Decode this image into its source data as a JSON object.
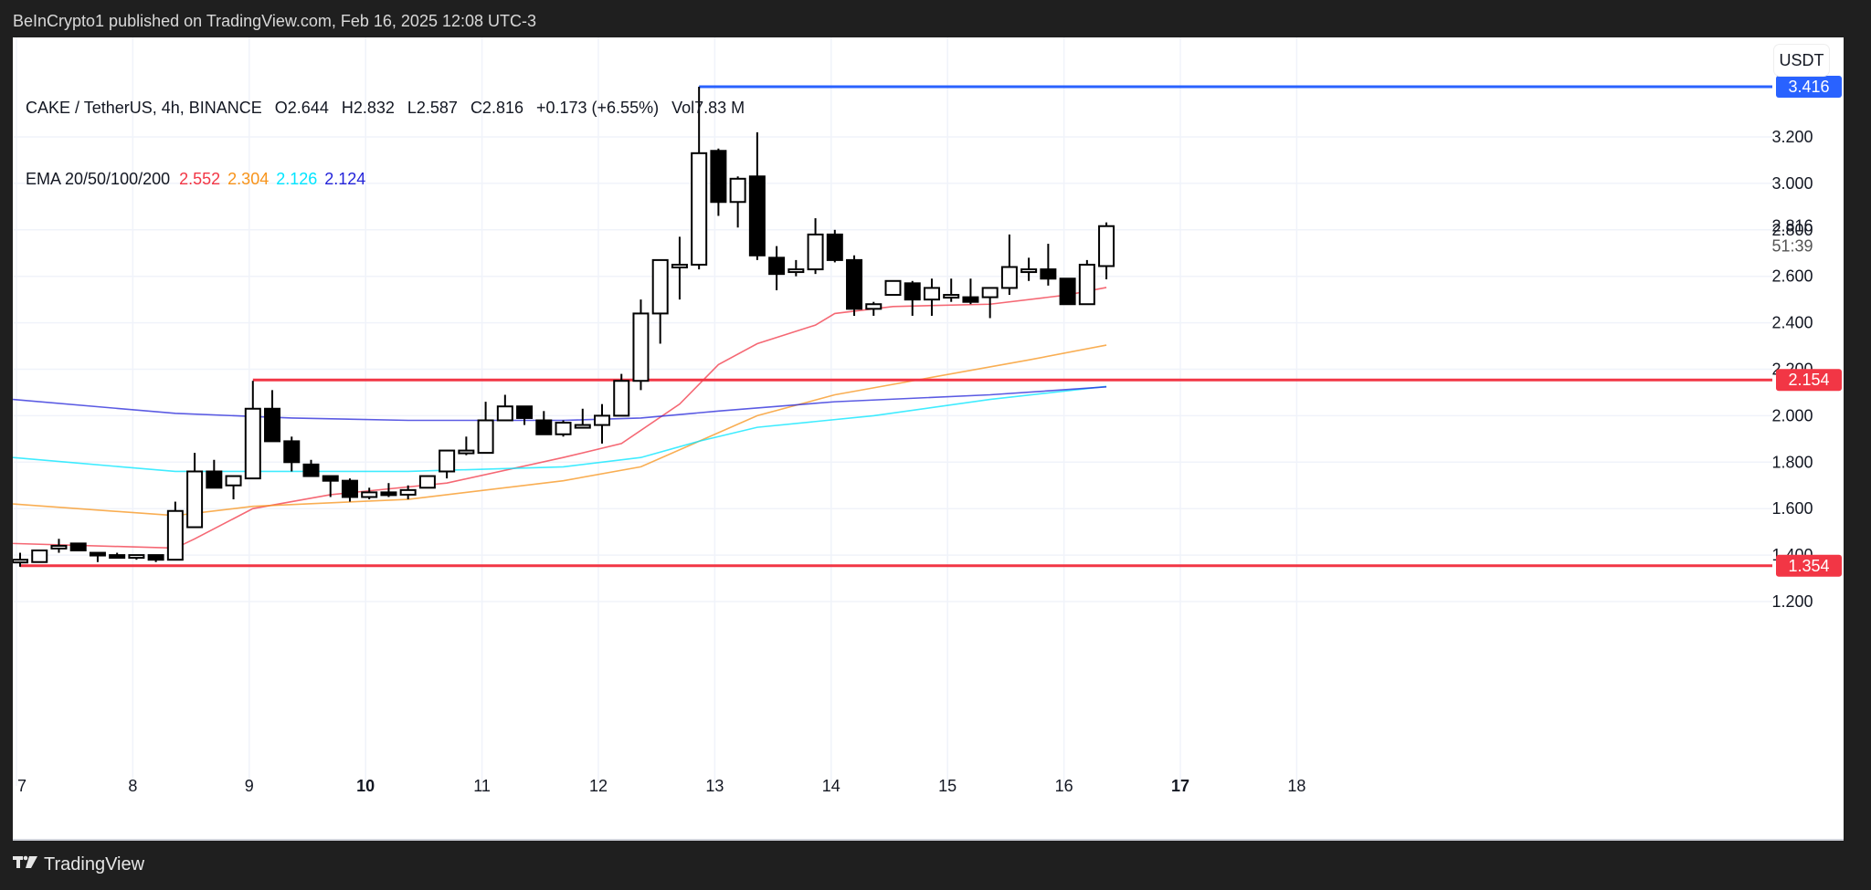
{
  "topbar": {
    "title": "BeInCrypto1 published on TradingView.com, Feb 16, 2025 12:08 UTC-3"
  },
  "legend": {
    "symbol": "CAKE / TetherUS, 4h, BINANCE",
    "open": "O2.644",
    "high": "H2.832",
    "low": "L2.587",
    "close": "C2.816",
    "change": "+0.173 (+6.55%)",
    "volume": "Vol7.83 M",
    "ema_label": "EMA 20/50/100/200",
    "ema20": "2.552",
    "ema50": "2.304",
    "ema100": "2.126",
    "ema200": "2.124"
  },
  "price_axis": {
    "unit_button": "USDT",
    "countdown": "51:39"
  },
  "footer": {
    "brand": "TradingView"
  },
  "colors": {
    "ema20": "#f23645",
    "ema50": "#f7931a",
    "ema100": "#00e5ff",
    "ema200": "#2424d9",
    "resistance": "#2962ff",
    "support": "#f23645"
  },
  "chart_data": {
    "type": "candlestick",
    "title": "CAKE / TetherUS, 4h, BINANCE",
    "xlabel": "",
    "ylabel": "USDT",
    "ylim": [
      1.1,
      3.55
    ],
    "x_ticks": [
      "7",
      "8",
      "9",
      "10",
      "11",
      "12",
      "13",
      "14",
      "15",
      "16",
      "17",
      "18"
    ],
    "y_ticks": [
      "1.200",
      "1.400",
      "1.600",
      "1.800",
      "2.000",
      "2.200",
      "2.400",
      "2.600",
      "2.800",
      "3.000",
      "3.200"
    ],
    "horizontal_levels": [
      {
        "label": "3.416",
        "value": 3.416,
        "color": "#2962ff"
      },
      {
        "label": "2.154",
        "value": 2.154,
        "color": "#f23645"
      },
      {
        "label": "1.354",
        "value": 1.354,
        "color": "#f23645"
      }
    ],
    "last_price": {
      "label": "2.816",
      "value": 2.816
    },
    "candles": [
      {
        "o": 1.38,
        "h": 1.41,
        "l": 1.35,
        "c": 1.38
      },
      {
        "o": 1.37,
        "h": 1.42,
        "l": 1.37,
        "c": 1.42
      },
      {
        "o": 1.43,
        "h": 1.47,
        "l": 1.41,
        "c": 1.44
      },
      {
        "o": 1.45,
        "h": 1.45,
        "l": 1.42,
        "c": 1.42
      },
      {
        "o": 1.41,
        "h": 1.41,
        "l": 1.37,
        "c": 1.4
      },
      {
        "o": 1.4,
        "h": 1.41,
        "l": 1.39,
        "c": 1.39
      },
      {
        "o": 1.39,
        "h": 1.4,
        "l": 1.38,
        "c": 1.4
      },
      {
        "o": 1.4,
        "h": 1.4,
        "l": 1.37,
        "c": 1.38
      },
      {
        "o": 1.38,
        "h": 1.63,
        "l": 1.38,
        "c": 1.59
      },
      {
        "o": 1.52,
        "h": 1.84,
        "l": 1.52,
        "c": 1.76
      },
      {
        "o": 1.76,
        "h": 1.81,
        "l": 1.69,
        "c": 1.69
      },
      {
        "o": 1.7,
        "h": 1.7,
        "l": 1.64,
        "c": 1.74
      },
      {
        "o": 1.73,
        "h": 2.15,
        "l": 1.73,
        "c": 2.03
      },
      {
        "o": 2.03,
        "h": 2.11,
        "l": 1.89,
        "c": 1.89
      },
      {
        "o": 1.89,
        "h": 1.91,
        "l": 1.76,
        "c": 1.8
      },
      {
        "o": 1.79,
        "h": 1.81,
        "l": 1.74,
        "c": 1.74
      },
      {
        "o": 1.74,
        "h": 1.74,
        "l": 1.65,
        "c": 1.72
      },
      {
        "o": 1.72,
        "h": 1.73,
        "l": 1.63,
        "c": 1.65
      },
      {
        "o": 1.65,
        "h": 1.69,
        "l": 1.64,
        "c": 1.67
      },
      {
        "o": 1.67,
        "h": 1.71,
        "l": 1.65,
        "c": 1.66
      },
      {
        "o": 1.66,
        "h": 1.7,
        "l": 1.64,
        "c": 1.68
      },
      {
        "o": 1.69,
        "h": 1.74,
        "l": 1.69,
        "c": 1.74
      },
      {
        "o": 1.76,
        "h": 1.83,
        "l": 1.73,
        "c": 1.85
      },
      {
        "o": 1.84,
        "h": 1.91,
        "l": 1.83,
        "c": 1.85
      },
      {
        "o": 1.84,
        "h": 2.06,
        "l": 1.84,
        "c": 1.98
      },
      {
        "o": 1.98,
        "h": 2.09,
        "l": 1.99,
        "c": 2.04
      },
      {
        "o": 2.04,
        "h": 2.01,
        "l": 1.96,
        "c": 1.99
      },
      {
        "o": 1.98,
        "h": 2.02,
        "l": 1.92,
        "c": 1.92
      },
      {
        "o": 1.92,
        "h": 1.98,
        "l": 1.91,
        "c": 1.97
      },
      {
        "o": 1.96,
        "h": 2.03,
        "l": 1.95,
        "c": 1.96
      },
      {
        "o": 1.96,
        "h": 2.05,
        "l": 1.88,
        "c": 2.0
      },
      {
        "o": 2.0,
        "h": 2.18,
        "l": 2.0,
        "c": 2.15
      },
      {
        "o": 2.15,
        "h": 2.5,
        "l": 2.11,
        "c": 2.44
      },
      {
        "o": 2.44,
        "h": 2.67,
        "l": 2.31,
        "c": 2.67
      },
      {
        "o": 2.65,
        "h": 2.77,
        "l": 2.5,
        "c": 2.65
      },
      {
        "o": 2.65,
        "h": 3.416,
        "l": 2.63,
        "c": 3.13
      },
      {
        "o": 3.14,
        "h": 3.15,
        "l": 2.86,
        "c": 2.92
      },
      {
        "o": 2.92,
        "h": 3.03,
        "l": 2.81,
        "c": 3.02
      },
      {
        "o": 3.03,
        "h": 3.22,
        "l": 2.67,
        "c": 2.69
      },
      {
        "o": 2.68,
        "h": 2.73,
        "l": 2.54,
        "c": 2.61
      },
      {
        "o": 2.62,
        "h": 2.67,
        "l": 2.6,
        "c": 2.63
      },
      {
        "o": 2.63,
        "h": 2.85,
        "l": 2.61,
        "c": 2.78
      },
      {
        "o": 2.78,
        "h": 2.8,
        "l": 2.66,
        "c": 2.67
      },
      {
        "o": 2.67,
        "h": 2.69,
        "l": 2.43,
        "c": 2.46
      },
      {
        "o": 2.46,
        "h": 2.49,
        "l": 2.43,
        "c": 2.48
      },
      {
        "o": 2.52,
        "h": 2.58,
        "l": 2.52,
        "c": 2.58
      },
      {
        "o": 2.57,
        "h": 2.58,
        "l": 2.43,
        "c": 2.5
      },
      {
        "o": 2.5,
        "h": 2.59,
        "l": 2.43,
        "c": 2.55
      },
      {
        "o": 2.52,
        "h": 2.59,
        "l": 2.49,
        "c": 2.52
      },
      {
        "o": 2.51,
        "h": 2.59,
        "l": 2.48,
        "c": 2.49
      },
      {
        "o": 2.51,
        "h": 2.55,
        "l": 2.42,
        "c": 2.55
      },
      {
        "o": 2.55,
        "h": 2.78,
        "l": 2.52,
        "c": 2.64
      },
      {
        "o": 2.63,
        "h": 2.68,
        "l": 2.58,
        "c": 2.63
      },
      {
        "o": 2.63,
        "h": 2.74,
        "l": 2.56,
        "c": 2.59
      },
      {
        "o": 2.59,
        "h": 2.59,
        "l": 2.48,
        "c": 2.48
      },
      {
        "o": 2.48,
        "h": 2.67,
        "l": 2.48,
        "c": 2.65
      },
      {
        "o": 2.644,
        "h": 2.832,
        "l": 2.587,
        "c": 2.816
      }
    ],
    "series": [
      {
        "name": "EMA 20",
        "color": "#f23645",
        "last": 2.552,
        "values": [
          [
            0,
            1.45
          ],
          [
            8,
            1.43
          ],
          [
            9,
            1.47
          ],
          [
            12,
            1.6
          ],
          [
            16,
            1.66
          ],
          [
            22,
            1.71
          ],
          [
            28,
            1.82
          ],
          [
            31,
            1.88
          ],
          [
            34,
            2.05
          ],
          [
            36,
            2.22
          ],
          [
            38,
            2.31
          ],
          [
            41,
            2.39
          ],
          [
            42,
            2.44
          ],
          [
            45,
            2.47
          ],
          [
            50,
            2.48
          ],
          [
            54,
            2.52
          ],
          [
            56,
            2.552
          ]
        ]
      },
      {
        "name": "EMA 50",
        "color": "#f7931a",
        "last": 2.304,
        "values": [
          [
            0,
            1.62
          ],
          [
            8,
            1.57
          ],
          [
            12,
            1.61
          ],
          [
            20,
            1.64
          ],
          [
            28,
            1.72
          ],
          [
            32,
            1.78
          ],
          [
            35,
            1.89
          ],
          [
            38,
            2.0
          ],
          [
            42,
            2.09
          ],
          [
            46,
            2.15
          ],
          [
            52,
            2.24
          ],
          [
            56,
            2.304
          ]
        ]
      },
      {
        "name": "EMA 100",
        "color": "#00e5ff",
        "last": 2.126,
        "values": [
          [
            0,
            1.82
          ],
          [
            8,
            1.76
          ],
          [
            12,
            1.76
          ],
          [
            20,
            1.76
          ],
          [
            28,
            1.78
          ],
          [
            32,
            1.82
          ],
          [
            35,
            1.89
          ],
          [
            38,
            1.95
          ],
          [
            44,
            2.0
          ],
          [
            50,
            2.07
          ],
          [
            56,
            2.126
          ]
        ]
      },
      {
        "name": "EMA 200",
        "color": "#2424d9",
        "last": 2.124,
        "values": [
          [
            0,
            2.07
          ],
          [
            8,
            2.01
          ],
          [
            14,
            1.99
          ],
          [
            20,
            1.98
          ],
          [
            28,
            1.98
          ],
          [
            32,
            1.99
          ],
          [
            36,
            2.02
          ],
          [
            42,
            2.06
          ],
          [
            50,
            2.09
          ],
          [
            56,
            2.124
          ]
        ]
      }
    ]
  }
}
